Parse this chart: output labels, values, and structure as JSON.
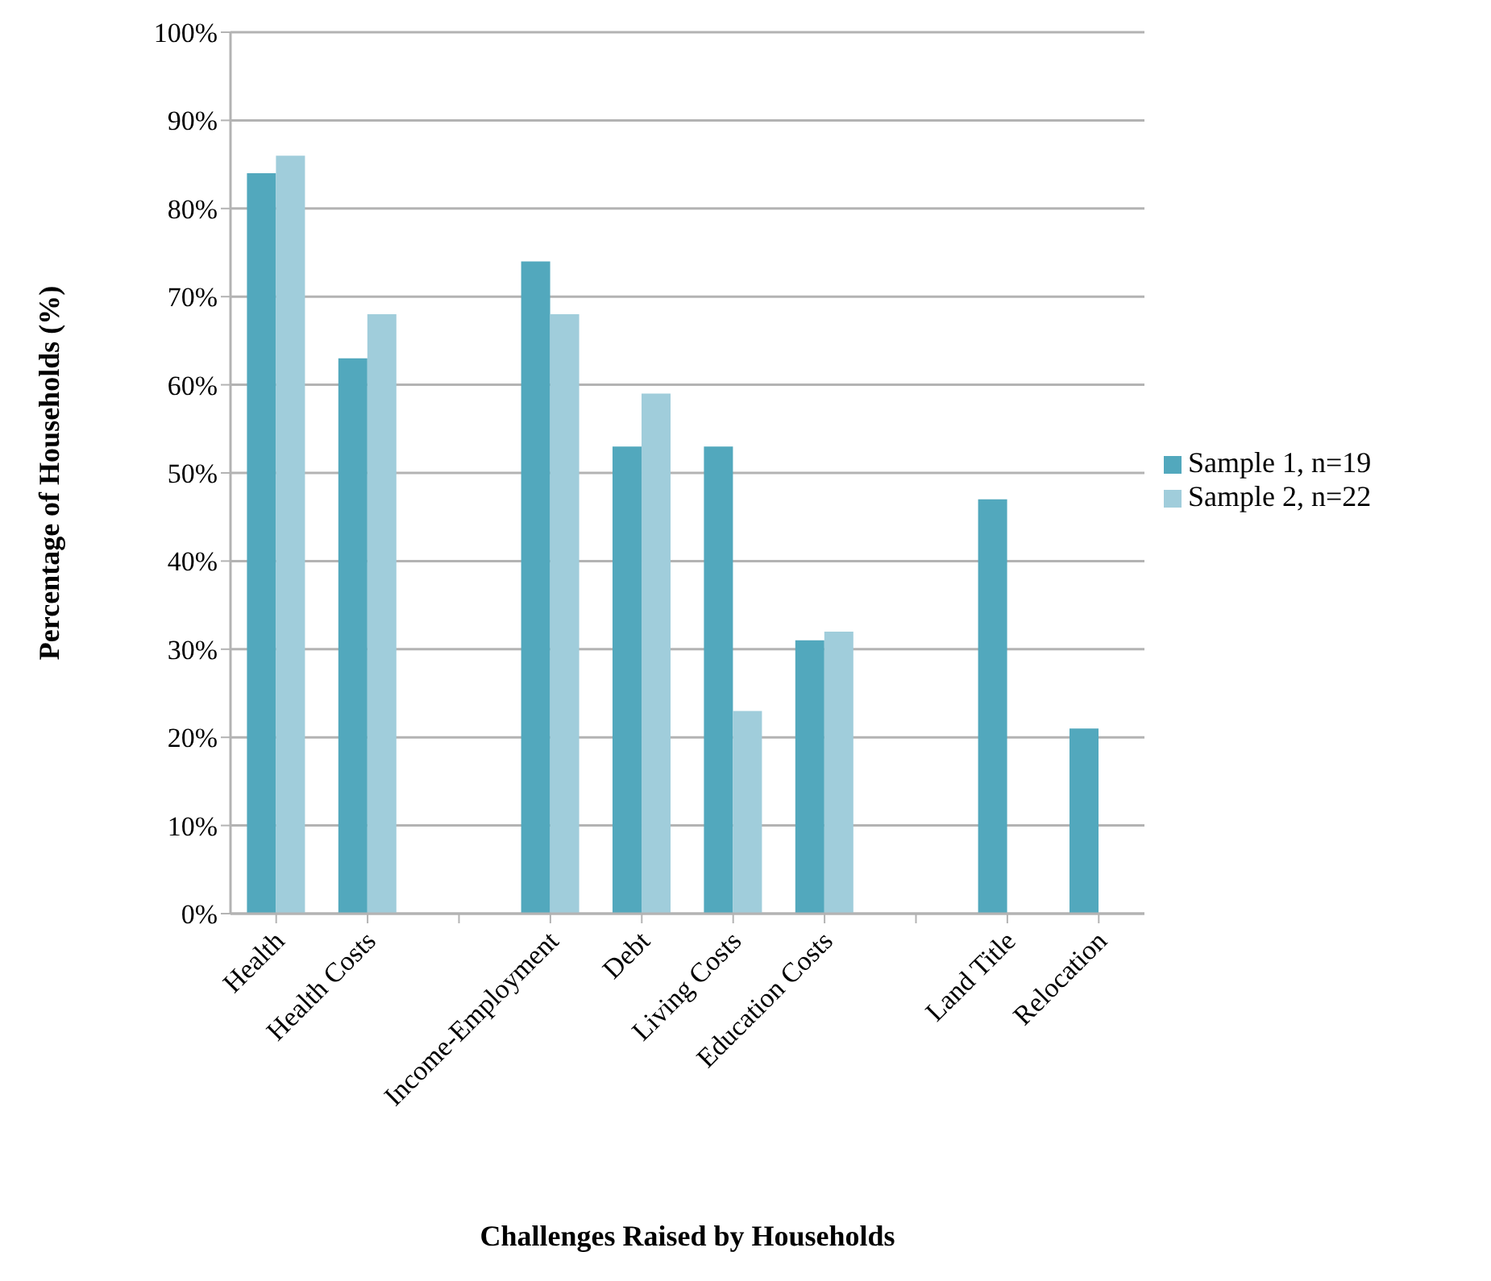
{
  "chart_data": {
    "type": "bar",
    "xlabel": "Challenges Raised by Households",
    "ylabel": "Percentage of Households (%)",
    "categories": [
      "Health",
      "Health Costs",
      null,
      "Income-Employment",
      "Debt",
      "Living Costs",
      "Education Costs",
      null,
      "Land Title",
      "Relocation"
    ],
    "series": [
      {
        "name": "Sample 1, n=19",
        "color": "#52a8bd",
        "values": [
          84,
          63,
          null,
          74,
          53,
          53,
          31,
          null,
          47,
          21
        ]
      },
      {
        "name": "Sample 2, n=22",
        "color": "#a0cddb",
        "values": [
          86,
          68,
          null,
          68,
          59,
          23,
          32,
          null,
          null,
          null
        ]
      }
    ],
    "ylim": [
      0,
      100
    ],
    "yticks": [
      {
        "value": 0,
        "label": "0%"
      },
      {
        "value": 10,
        "label": "10%"
      },
      {
        "value": 20,
        "label": "20%"
      },
      {
        "value": 30,
        "label": "30%"
      },
      {
        "value": 40,
        "label": "40%"
      },
      {
        "value": 50,
        "label": "50%"
      },
      {
        "value": 60,
        "label": "60%"
      },
      {
        "value": 70,
        "label": "70%"
      },
      {
        "value": 80,
        "label": "80%"
      },
      {
        "value": 90,
        "label": "90%"
      },
      {
        "value": 100,
        "label": "100%"
      }
    ],
    "grid": "y",
    "legend": "right"
  }
}
